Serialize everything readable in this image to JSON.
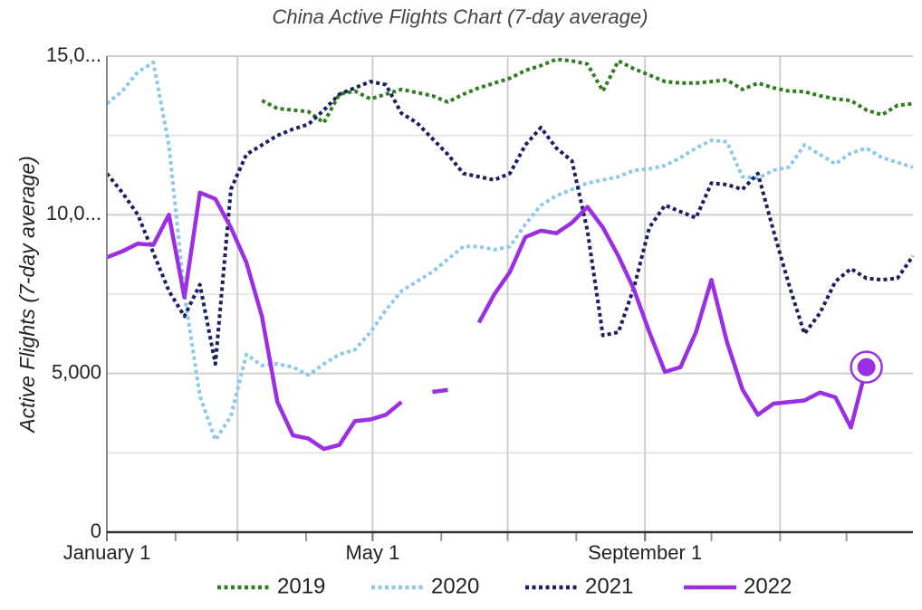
{
  "chart_data": {
    "type": "line",
    "title": "China Active Flights Chart (7-day average)",
    "y_label": "Active Flights (7-day average)",
    "x": [
      "01-01",
      "01-08",
      "01-15",
      "01-22",
      "01-29",
      "02-05",
      "02-12",
      "02-19",
      "02-26",
      "03-05",
      "03-12",
      "03-19",
      "03-26",
      "04-02",
      "04-09",
      "04-16",
      "04-23",
      "04-30",
      "05-07",
      "05-14",
      "05-21",
      "05-28",
      "06-04",
      "06-11",
      "06-18",
      "06-25",
      "07-02",
      "07-09",
      "07-16",
      "07-23",
      "07-30",
      "08-06",
      "08-13",
      "08-20",
      "08-27",
      "09-03",
      "09-10",
      "09-17",
      "09-24",
      "10-01",
      "10-08",
      "10-15",
      "10-22",
      "10-29",
      "11-05",
      "11-12",
      "11-19",
      "11-26",
      "12-03",
      "12-10",
      "12-17",
      "12-24",
      "12-31"
    ],
    "xlim": [
      "01-01",
      "12-31"
    ],
    "xticks": [
      {
        "value": "01-01",
        "label": "January 1"
      },
      {
        "value": "05-01",
        "label": "May 1"
      },
      {
        "value": "09-01",
        "label": "September 1"
      }
    ],
    "ylim": [
      0,
      15000
    ],
    "yticks": [
      0,
      {
        "value": 5000,
        "label": "5,000"
      },
      {
        "value": 10000,
        "label": "10,0..."
      },
      {
        "value": 15000,
        "label": "15,0..."
      }
    ],
    "grid": true,
    "legend": "bottom",
    "series": [
      {
        "name": "2019",
        "color": "#2f7d1f",
        "line_style": "dotted",
        "values": [
          null,
          null,
          null,
          null,
          null,
          null,
          null,
          null,
          null,
          null,
          13600,
          13350,
          13300,
          13250,
          12900,
          13800,
          13900,
          13650,
          13800,
          13950,
          13850,
          13750,
          13550,
          13800,
          14000,
          14150,
          14300,
          14550,
          14700,
          14900,
          14850,
          14750,
          13900,
          14850,
          14600,
          14400,
          14200,
          14150,
          14150,
          14200,
          14250,
          13950,
          14150,
          14000,
          13900,
          13880,
          13750,
          13650,
          13600,
          13300,
          13150,
          13450,
          13500
        ]
      },
      {
        "name": "2020",
        "color": "#8ec9ec",
        "line_style": "dotted",
        "values": [
          13500,
          13900,
          14500,
          14800,
          12200,
          7500,
          4300,
          2900,
          3650,
          5600,
          5250,
          5300,
          5200,
          4950,
          5300,
          5600,
          5750,
          6300,
          7000,
          7600,
          7900,
          8200,
          8600,
          9000,
          9000,
          8900,
          9000,
          9700,
          10300,
          10600,
          10800,
          11000,
          11100,
          11200,
          11400,
          11450,
          11550,
          11800,
          12100,
          12350,
          12300,
          11200,
          11150,
          11400,
          11500,
          12200,
          11900,
          11600,
          11950,
          12100,
          11800,
          11650,
          11500
        ]
      },
      {
        "name": "2021",
        "color": "#1b1f63",
        "line_style": "dotted",
        "values": [
          11300,
          10700,
          10000,
          8800,
          7600,
          6800,
          7800,
          5300,
          10800,
          11900,
          12200,
          12500,
          12700,
          12850,
          13300,
          13800,
          14000,
          14200,
          14100,
          13200,
          12900,
          12400,
          11900,
          11300,
          11200,
          11100,
          11300,
          12200,
          12750,
          12100,
          11700,
          9500,
          6200,
          6300,
          7700,
          9600,
          10300,
          10100,
          9900,
          11000,
          10950,
          10800,
          11300,
          9500,
          7800,
          6250,
          6900,
          7900,
          8300,
          8000,
          7950,
          8000,
          8700
        ]
      },
      {
        "name": "2022",
        "color": "#9b2fe3",
        "line_style": "solid",
        "values": [
          8660,
          8850,
          9090,
          9050,
          10000,
          7400,
          10700,
          10500,
          9600,
          8500,
          6800,
          4100,
          3050,
          2950,
          2620,
          2750,
          3500,
          3550,
          3700,
          4100,
          null,
          4420,
          4480,
          null,
          6600,
          7500,
          8200,
          9300,
          9500,
          9420,
          9750,
          10250,
          9600,
          8700,
          7650,
          6300,
          5050,
          5200,
          6300,
          7950,
          6000,
          4500,
          3700,
          4050,
          4100,
          4150,
          4400,
          4250,
          3300,
          5200,
          null,
          null,
          null
        ]
      }
    ]
  }
}
